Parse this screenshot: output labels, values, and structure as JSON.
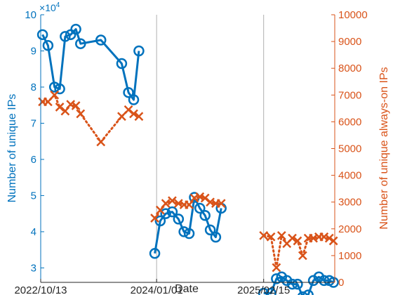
{
  "chart_data": {
    "type": "line",
    "xlabel": "Date",
    "x_ticks": [
      "2022/10/13",
      "2024/01/01",
      "2025/02/15"
    ],
    "x_range": [
      "2022/10/13",
      "2025/11/15"
    ],
    "vertical_reference_lines": [
      "2024/01/01",
      "2025/02/15"
    ],
    "y_left": {
      "label": "Number of unique IPs",
      "range": [
        2.6,
        10
      ],
      "ticks": [
        3,
        4,
        5,
        6,
        7,
        8,
        9,
        10
      ],
      "scale_label": "×10^4",
      "scale_base": "10",
      "scale_exp": "4",
      "color": "#0072BD"
    },
    "y_right": {
      "label": "Number of unique always-on IPs",
      "range": [
        0,
        10000
      ],
      "ticks": [
        0,
        1000,
        2000,
        3000,
        4000,
        5000,
        6000,
        7000,
        8000,
        9000,
        10000
      ],
      "color": "#D95319"
    },
    "series": [
      {
        "axis": "left",
        "marker": "circle",
        "line": "solid",
        "color": "#0072BD",
        "segments": [
          [
            [
              "2022/10/20",
              9.45
            ],
            [
              "2022/11/10",
              9.15
            ],
            [
              "2022/12/05",
              8.0
            ],
            [
              "2022/12/25",
              7.95
            ],
            [
              "2023/01/15",
              9.4
            ],
            [
              "2023/02/05",
              9.45
            ],
            [
              "2023/02/25",
              9.6
            ],
            [
              "2023/03/15",
              9.2
            ],
            [
              "2023/06/01",
              9.3
            ],
            [
              "2023/08/20",
              8.65
            ],
            [
              "2023/09/15",
              7.85
            ],
            [
              "2023/10/05",
              7.65
            ],
            [
              "2023/10/25",
              9.0
            ]
          ],
          [
            [
              "2023/12/25",
              3.4
            ],
            [
              "2024/01/15",
              4.3
            ],
            [
              "2024/02/05",
              4.5
            ],
            [
              "2024/03/01",
              4.55
            ],
            [
              "2024/03/25",
              4.35
            ],
            [
              "2024/04/15",
              4.0
            ],
            [
              "2024/05/05",
              3.95
            ],
            [
              "2024/05/25",
              4.95
            ],
            [
              "2024/06/15",
              4.65
            ],
            [
              "2024/07/05",
              4.45
            ],
            [
              "2024/07/25",
              4.05
            ],
            [
              "2024/08/15",
              3.85
            ],
            [
              "2024/09/05",
              4.65
            ]
          ],
          [
            [
              "2025/02/15",
              2.3
            ],
            [
              "2025/03/15",
              2.3
            ],
            [
              "2025/04/05",
              2.7
            ],
            [
              "2025/04/25",
              2.75
            ],
            [
              "2025/05/15",
              2.65
            ],
            [
              "2025/06/05",
              2.55
            ],
            [
              "2025/06/25",
              2.55
            ],
            [
              "2025/07/15",
              2.2
            ],
            [
              "2025/08/05",
              2.25
            ],
            [
              "2025/08/25",
              2.65
            ],
            [
              "2025/09/15",
              2.75
            ],
            [
              "2025/10/05",
              2.65
            ],
            [
              "2025/10/25",
              2.65
            ],
            [
              "2025/11/10",
              2.6
            ]
          ]
        ]
      },
      {
        "axis": "right",
        "marker": "x",
        "line": "dotted",
        "color": "#D95319",
        "segments": [
          [
            [
              "2022/10/20",
              6750
            ],
            [
              "2022/11/10",
              6750
            ],
            [
              "2022/12/05",
              7000
            ],
            [
              "2022/12/25",
              6550
            ],
            [
              "2023/01/15",
              6400
            ],
            [
              "2023/02/05",
              6650
            ],
            [
              "2023/02/25",
              6600
            ],
            [
              "2023/03/15",
              6300
            ],
            [
              "2023/06/01",
              5250
            ],
            [
              "2023/08/20",
              6200
            ],
            [
              "2023/09/15",
              6450
            ],
            [
              "2023/10/05",
              6300
            ],
            [
              "2023/10/25",
              6200
            ]
          ],
          [
            [
              "2023/12/25",
              2400
            ],
            [
              "2024/01/15",
              2700
            ],
            [
              "2024/02/05",
              2950
            ],
            [
              "2024/03/01",
              3050
            ],
            [
              "2024/03/25",
              2950
            ],
            [
              "2024/04/15",
              2900
            ],
            [
              "2024/05/05",
              2900
            ],
            [
              "2024/05/25",
              3150
            ],
            [
              "2024/06/15",
              3200
            ],
            [
              "2024/07/05",
              3150
            ],
            [
              "2024/07/25",
              3000
            ],
            [
              "2024/08/15",
              2950
            ],
            [
              "2024/09/05",
              2950
            ]
          ],
          [
            [
              "2025/02/15",
              1750
            ],
            [
              "2025/03/15",
              1700
            ],
            [
              "2025/04/05",
              550
            ],
            [
              "2025/04/25",
              1750
            ],
            [
              "2025/05/15",
              1450
            ],
            [
              "2025/06/05",
              1650
            ],
            [
              "2025/06/25",
              1550
            ],
            [
              "2025/07/15",
              1000
            ],
            [
              "2025/08/05",
              1650
            ],
            [
              "2025/08/25",
              1650
            ],
            [
              "2025/09/15",
              1700
            ],
            [
              "2025/10/05",
              1700
            ],
            [
              "2025/10/25",
              1650
            ],
            [
              "2025/11/10",
              1550
            ]
          ]
        ]
      }
    ]
  }
}
